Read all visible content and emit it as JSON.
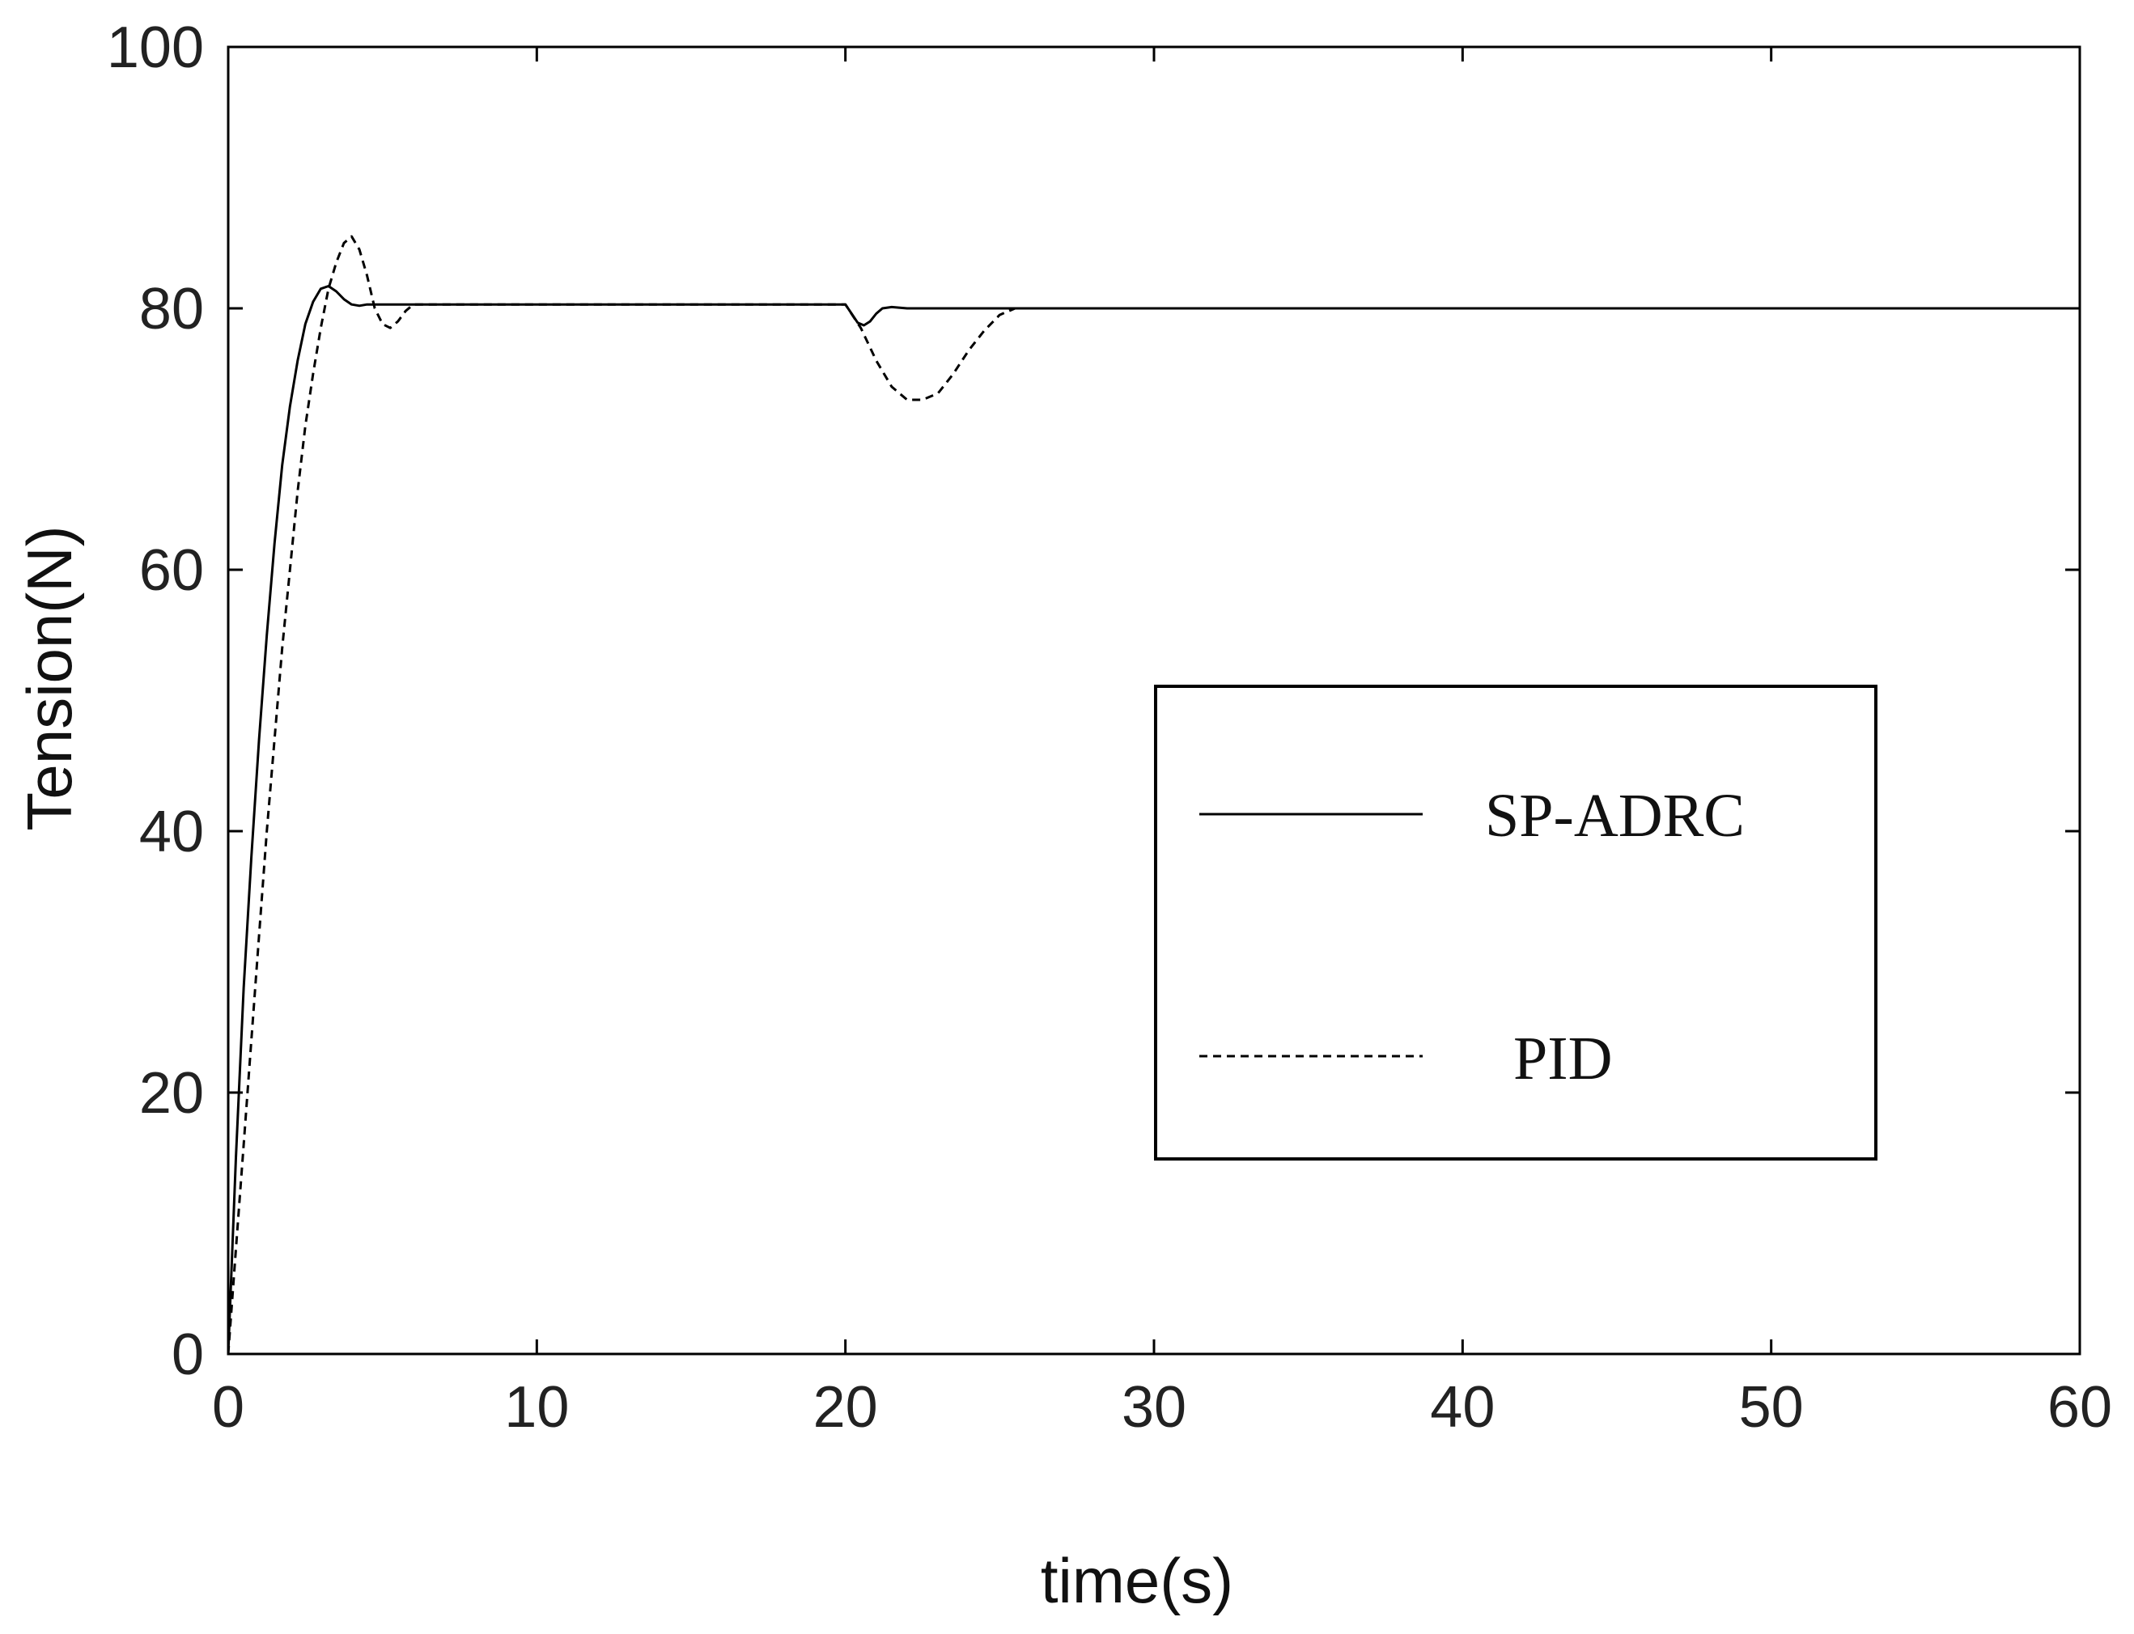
{
  "chart_data": {
    "type": "line",
    "title": "",
    "xlabel": "time(s)",
    "ylabel": "Tension(N)",
    "xlim": [
      0,
      60
    ],
    "ylim": [
      0,
      100
    ],
    "xticks": [
      0,
      10,
      20,
      30,
      40,
      50,
      60
    ],
    "yticks": [
      0,
      20,
      40,
      60,
      80,
      100
    ],
    "grid": false,
    "legend_position": "center-right",
    "series": [
      {
        "name": "SP-ADRC",
        "line_style": "solid",
        "color": "#000000",
        "x": [
          0,
          0.25,
          0.5,
          0.75,
          1.0,
          1.25,
          1.5,
          1.75,
          2.0,
          2.25,
          2.5,
          2.75,
          3.0,
          3.25,
          3.5,
          3.75,
          4.0,
          4.25,
          4.5,
          5.0,
          5.5,
          6.0,
          10,
          15,
          20,
          20.2,
          20.4,
          20.6,
          20.8,
          21.0,
          21.2,
          21.5,
          22,
          25,
          30,
          40,
          50,
          60
        ],
        "y": [
          0,
          15,
          28,
          38,
          47,
          55,
          62,
          68,
          72.5,
          76,
          78.8,
          80.5,
          81.5,
          81.7,
          81.3,
          80.7,
          80.3,
          80.2,
          80.3,
          80.3,
          80.3,
          80.3,
          80.3,
          80.3,
          80.3,
          79.6,
          78.9,
          78.7,
          79.0,
          79.6,
          80.0,
          80.1,
          80.0,
          80.0,
          80.0,
          80.0,
          80.0,
          80.0
        ]
      },
      {
        "name": "PID",
        "line_style": "dashed",
        "color": "#000000",
        "x": [
          0,
          0.25,
          0.5,
          0.75,
          1.0,
          1.25,
          1.5,
          1.75,
          2.0,
          2.25,
          2.5,
          2.75,
          3.0,
          3.25,
          3.5,
          3.75,
          4.0,
          4.25,
          4.5,
          4.75,
          5.0,
          5.25,
          5.5,
          5.75,
          6.0,
          6.5,
          10,
          15,
          20,
          20.5,
          21.0,
          21.5,
          22.0,
          22.5,
          23.0,
          23.5,
          24.0,
          24.5,
          25.0,
          25.5,
          26,
          30,
          40,
          50,
          60
        ],
        "y": [
          0,
          8,
          16,
          24,
          32,
          40,
          47,
          54,
          60,
          66,
          71,
          75,
          78.5,
          81.5,
          83.5,
          85,
          85.5,
          84.5,
          82.5,
          80,
          78.8,
          78.5,
          79,
          79.8,
          80.3,
          80.3,
          80.3,
          80.3,
          80.3,
          78.5,
          76,
          74,
          73,
          73,
          73.5,
          75,
          76.8,
          78.3,
          79.5,
          80,
          80,
          80,
          80,
          80,
          80
        ]
      }
    ]
  }
}
